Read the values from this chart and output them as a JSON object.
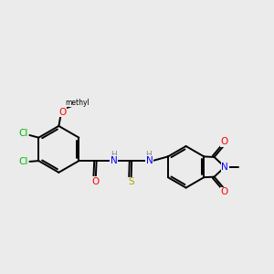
{
  "background_color": "#ebebeb",
  "bond_color": "#000000",
  "atom_colors": {
    "Cl": "#00bb00",
    "O": "#ff0000",
    "N": "#0000ff",
    "S": "#aaaa00",
    "C": "#000000",
    "H": "#888888"
  },
  "figsize": [
    3.0,
    3.0
  ],
  "dpi": 100
}
